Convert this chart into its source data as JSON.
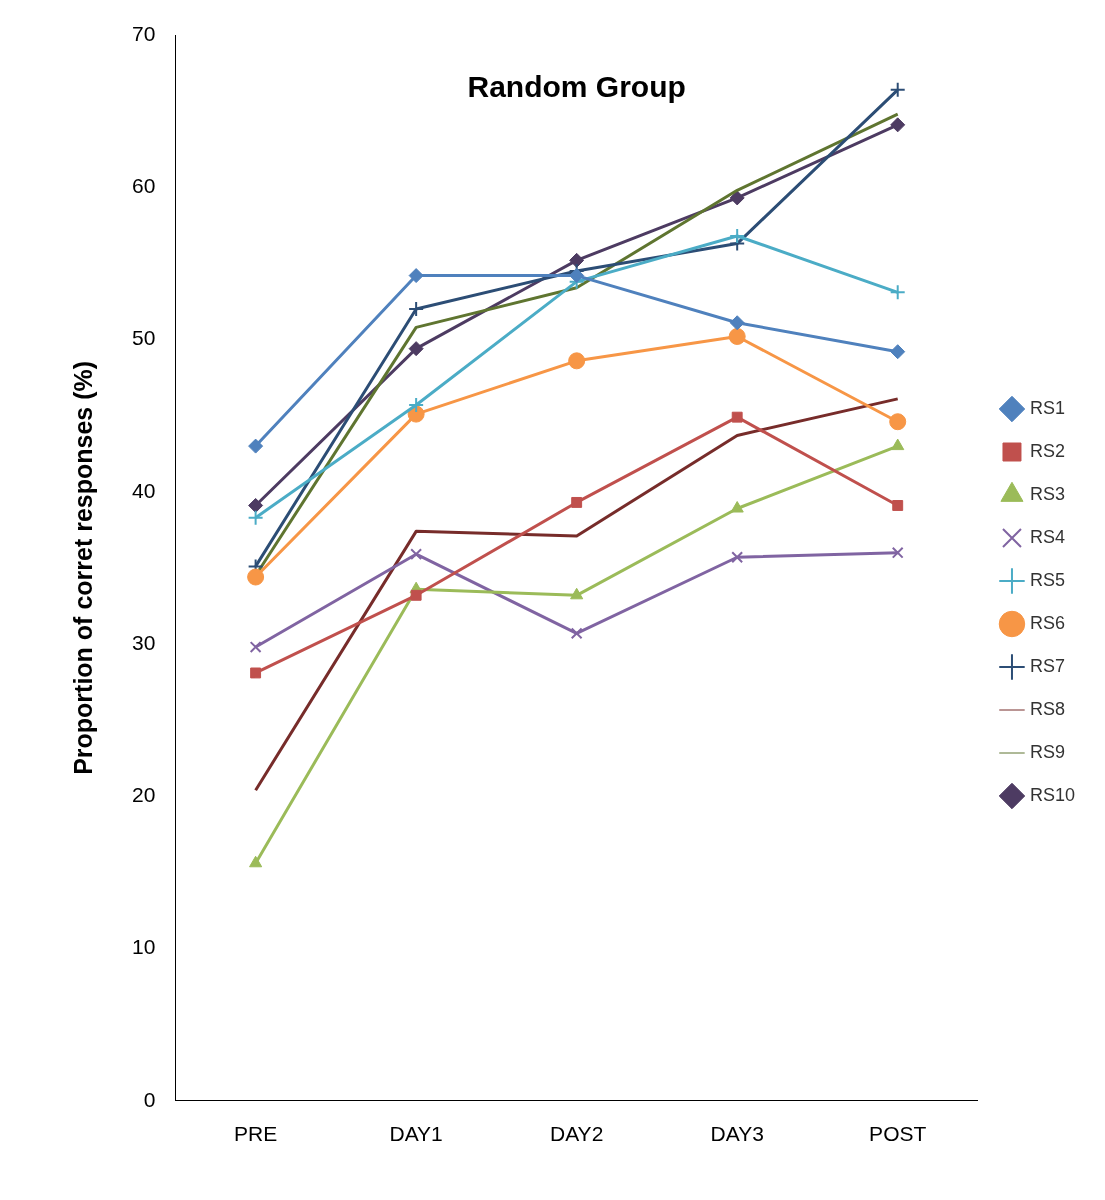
{
  "chart_data": {
    "type": "line",
    "title": "Random Group",
    "ylabel": "Proportion of corret responses (%)",
    "categories": [
      "PRE",
      "DAY1",
      "DAY2",
      "DAY3",
      "POST"
    ],
    "ylim": [
      0,
      70
    ],
    "yticks": [
      0,
      10,
      20,
      30,
      40,
      50,
      60,
      70
    ],
    "grid": false,
    "legend": "right",
    "series": [
      {
        "name": "RS1",
        "color": "#4f81bd",
        "marker": "diamond",
        "values": [
          43.0,
          54.2,
          54.2,
          51.1,
          49.2
        ]
      },
      {
        "name": "RS2",
        "color": "#c0504d",
        "marker": "square",
        "values": [
          28.1,
          33.2,
          39.3,
          44.9,
          39.1
        ]
      },
      {
        "name": "RS3",
        "color": "#9bbb59",
        "marker": "triangle",
        "values": [
          15.6,
          33.6,
          33.2,
          38.9,
          43.0
        ]
      },
      {
        "name": "RS4",
        "color": "#8064a2",
        "marker": "x",
        "values": [
          29.8,
          35.9,
          30.7,
          35.7,
          36.0
        ]
      },
      {
        "name": "RS5",
        "color": "#4bacc6",
        "marker": "cross",
        "values": [
          38.3,
          45.7,
          53.8,
          56.8,
          53.1
        ]
      },
      {
        "name": "RS6",
        "color": "#f79646",
        "marker": "circle",
        "values": [
          34.4,
          45.1,
          48.6,
          50.2,
          44.6
        ]
      },
      {
        "name": "RS7",
        "color": "#2c4d75",
        "marker": "cross",
        "values": [
          35.1,
          52.0,
          54.5,
          56.3,
          66.4
        ]
      },
      {
        "name": "RS8",
        "color": "#772c2a",
        "marker": "none",
        "values": [
          20.4,
          37.4,
          37.1,
          43.7,
          46.1
        ]
      },
      {
        "name": "RS9",
        "color": "#5f7530",
        "marker": "none",
        "values": [
          34.5,
          50.8,
          53.4,
          59.8,
          64.8
        ]
      },
      {
        "name": "RS10",
        "color": "#4d3b62",
        "marker": "diamond",
        "values": [
          39.1,
          49.4,
          55.2,
          59.3,
          64.1
        ]
      }
    ]
  }
}
